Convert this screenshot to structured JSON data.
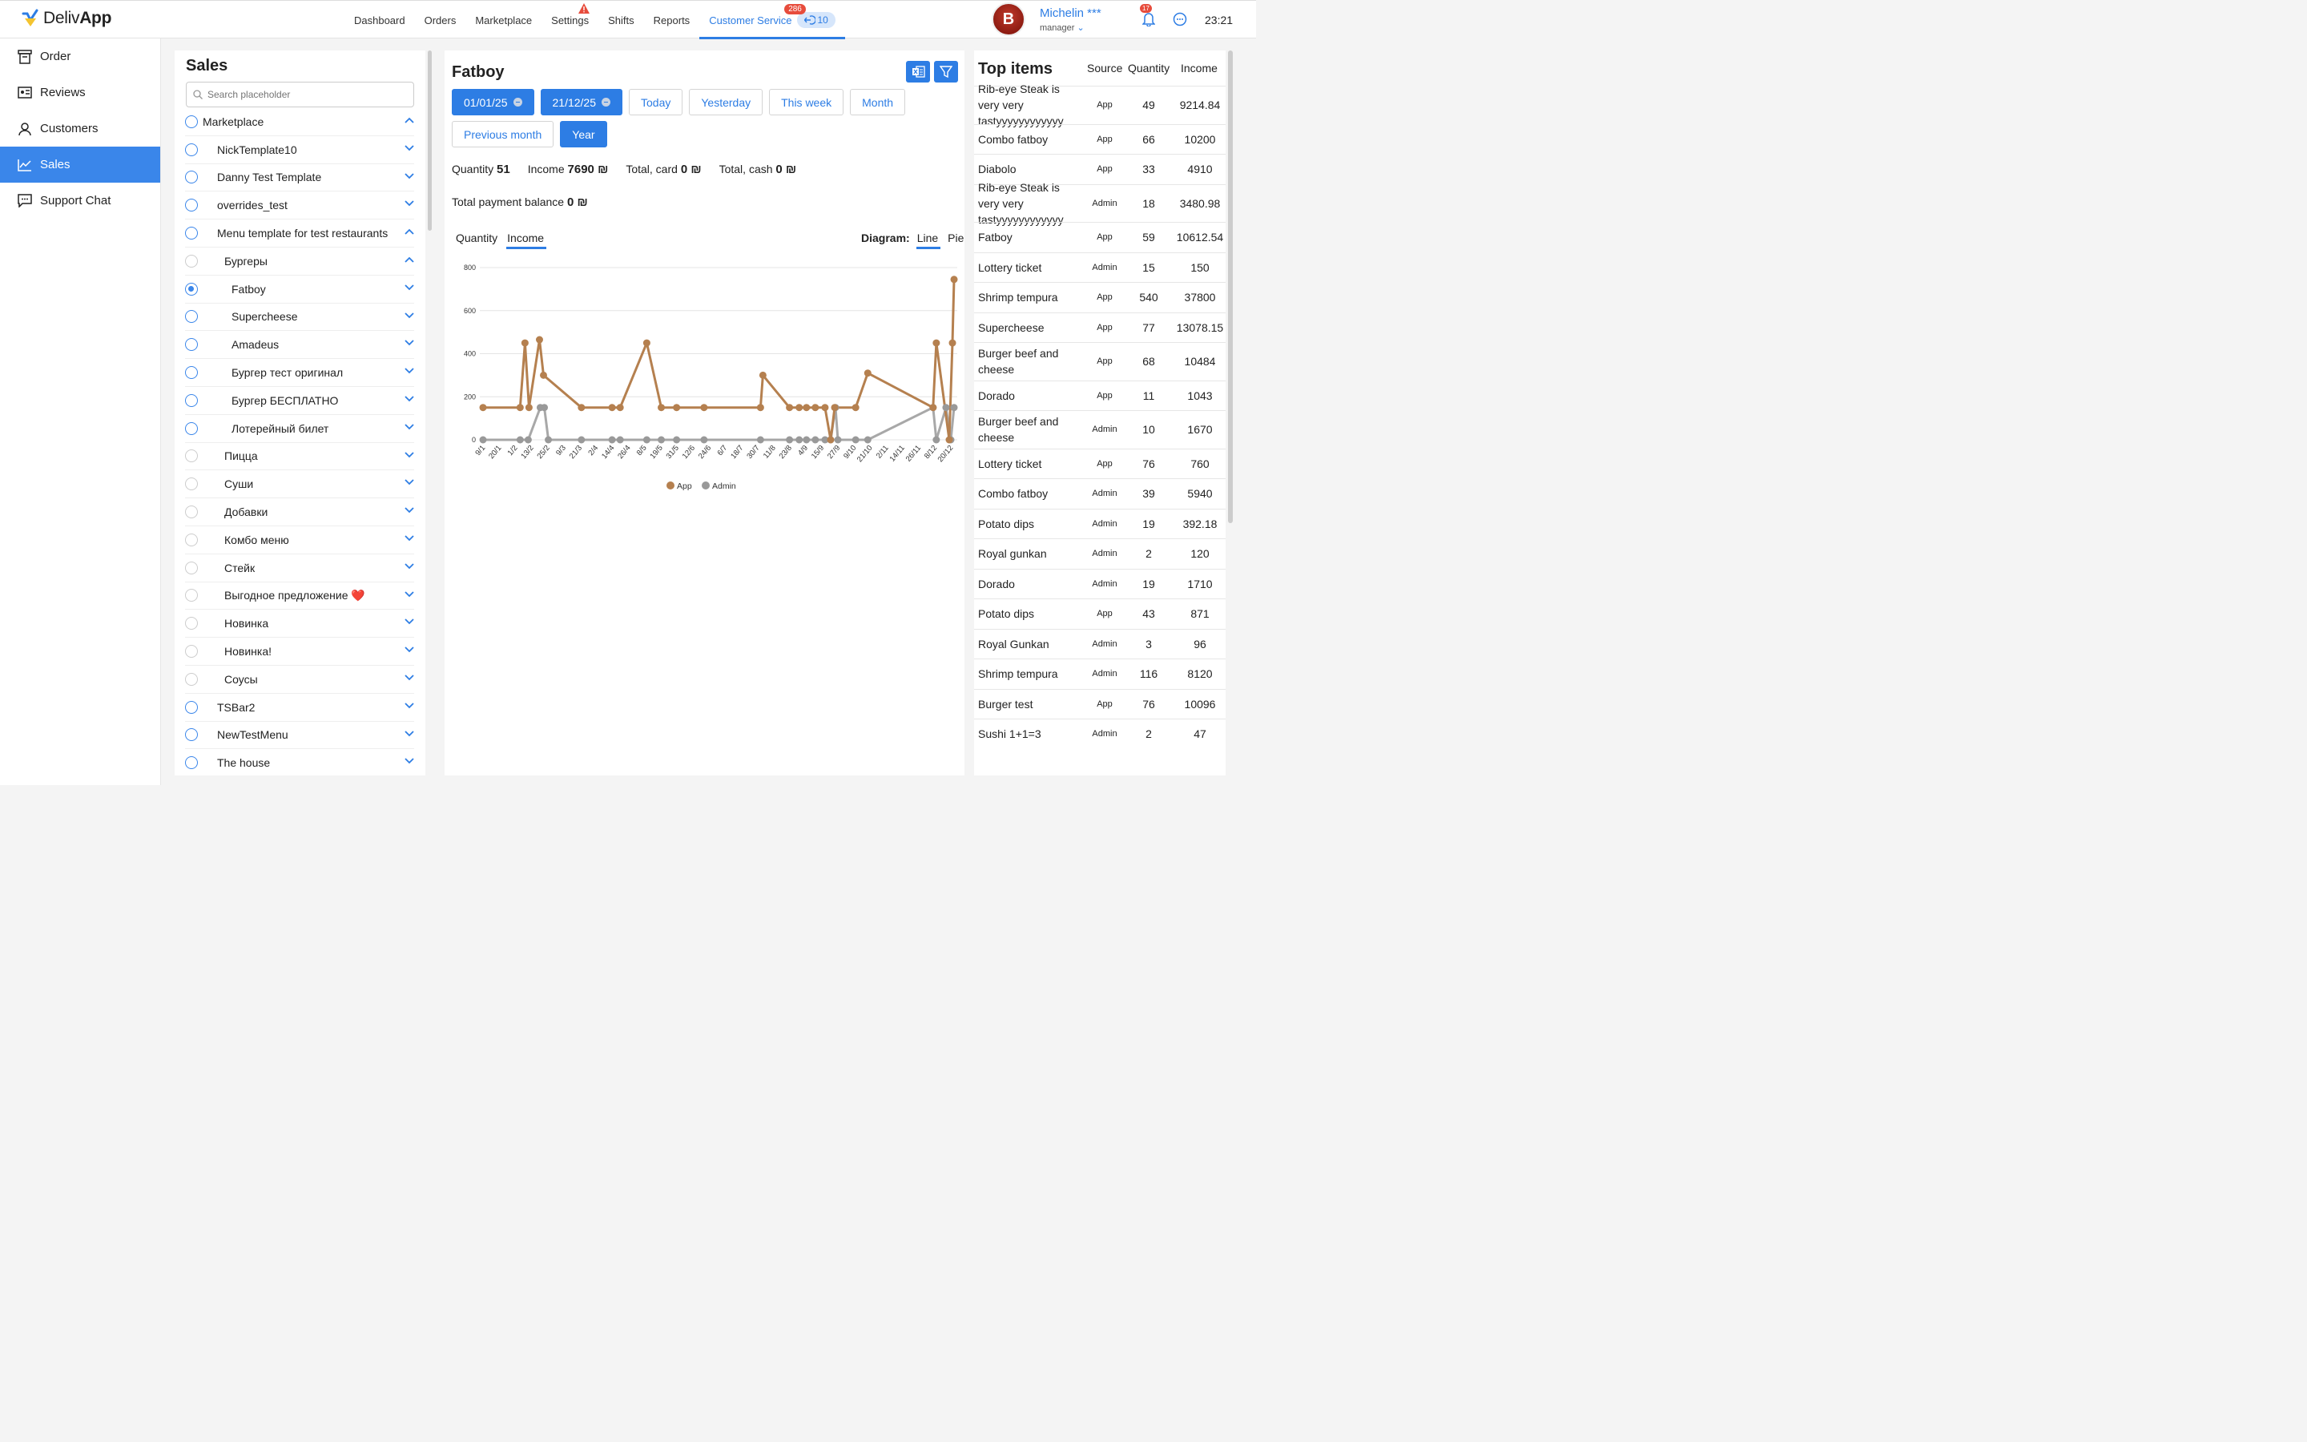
{
  "app": {
    "logo_prefix": "Deliv",
    "logo_bold": "App",
    "time": "23:21"
  },
  "nav": [
    {
      "label": "Dashboard"
    },
    {
      "label": "Orders"
    },
    {
      "label": "Marketplace"
    },
    {
      "label": "Settings"
    },
    {
      "label": "Shifts"
    },
    {
      "label": "Reports"
    },
    {
      "label": "Customer Service"
    }
  ],
  "customer_service": {
    "badge": "286",
    "pill": "10"
  },
  "user": {
    "name": "Michelin ***",
    "role": "manager",
    "avatar_letter": "B",
    "notifications": "17"
  },
  "sidebar": [
    {
      "label": "Order",
      "icon": "order-icon"
    },
    {
      "label": "Reviews",
      "icon": "reviews-icon"
    },
    {
      "label": "Customers",
      "icon": "customers-icon"
    },
    {
      "label": "Sales",
      "icon": "sales-chart-icon"
    },
    {
      "label": "Support Chat",
      "icon": "support-chat-icon"
    }
  ],
  "sales": {
    "title": "Sales",
    "search_placeholder": "Search placeholder",
    "tree": [
      {
        "label": "Marketplace",
        "indent": 0,
        "radio": "blue",
        "chevron": "up"
      },
      {
        "label": "NickTemplate10",
        "indent": 1,
        "radio": "blue",
        "chevron": "down"
      },
      {
        "label": "Danny Test Template",
        "indent": 1,
        "radio": "blue",
        "chevron": "down"
      },
      {
        "label": "overrides_test",
        "indent": 1,
        "radio": "blue",
        "chevron": "down"
      },
      {
        "label": "Menu template for test restaurants",
        "indent": 1,
        "radio": "blue",
        "chevron": "up"
      },
      {
        "label": "Бургеры",
        "indent": 2,
        "radio": "grey",
        "chevron": "up"
      },
      {
        "label": "Fatboy",
        "indent": 3,
        "radio": "checked",
        "chevron": "down"
      },
      {
        "label": "Supercheese",
        "indent": 3,
        "radio": "blue",
        "chevron": "down"
      },
      {
        "label": "Amadeus",
        "indent": 3,
        "radio": "blue",
        "chevron": "down"
      },
      {
        "label": "Бургер тест оригинал",
        "indent": 3,
        "radio": "blue",
        "chevron": "down"
      },
      {
        "label": "Бургер БЕСПЛАТНО",
        "indent": 3,
        "radio": "blue",
        "chevron": "down"
      },
      {
        "label": "Лотерейный билет",
        "indent": 3,
        "radio": "blue",
        "chevron": "down"
      },
      {
        "label": "Пицца",
        "indent": 2,
        "radio": "grey",
        "chevron": "down"
      },
      {
        "label": "Суши",
        "indent": 2,
        "radio": "grey",
        "chevron": "down"
      },
      {
        "label": "Добавки",
        "indent": 2,
        "radio": "grey",
        "chevron": "down"
      },
      {
        "label": "Комбо меню",
        "indent": 2,
        "radio": "grey",
        "chevron": "down"
      },
      {
        "label": "Стейк",
        "indent": 2,
        "radio": "grey",
        "chevron": "down"
      },
      {
        "label": "Выгодное предложение ❤️",
        "indent": 2,
        "radio": "grey",
        "chevron": "down"
      },
      {
        "label": "Новинка",
        "indent": 2,
        "radio": "grey",
        "chevron": "down"
      },
      {
        "label": "Новинка!",
        "indent": 2,
        "radio": "grey",
        "chevron": "down"
      },
      {
        "label": "Соусы",
        "indent": 2,
        "radio": "grey",
        "chevron": "down"
      },
      {
        "label": "TSBar2",
        "indent": 1,
        "radio": "blue",
        "chevron": "down"
      },
      {
        "label": "NewTestMenu",
        "indent": 1,
        "radio": "blue",
        "chevron": "down"
      },
      {
        "label": "The house",
        "indent": 1,
        "radio": "blue",
        "chevron": "down"
      }
    ]
  },
  "main": {
    "title": "Fatboy",
    "date_from": "01/01/25",
    "date_to": "21/12/25",
    "quick_ranges": [
      "Today",
      "Yesterday",
      "This week",
      "Month",
      "Previous month",
      "Year"
    ],
    "active_range": "Year",
    "stats": {
      "quantity_label": "Quantity",
      "quantity_value": "51",
      "income_label": "Income",
      "income_value": "7690 ₪",
      "card_label": "Total, card",
      "card_value": "0 ₪",
      "cash_label": "Total, cash",
      "cash_value": "0 ₪",
      "balance_label": "Total payment balance",
      "balance_value": "0 ₪"
    },
    "tabs": [
      "Quantity",
      "Income"
    ],
    "active_tab": "Income",
    "diagram_label": "Diagram:",
    "diagram_options": [
      "Line",
      "Pie"
    ],
    "active_diagram": "Line"
  },
  "chart_data": {
    "type": "line",
    "ylim": [
      0,
      800
    ],
    "yticks": [
      0,
      200,
      400,
      600,
      800
    ],
    "x_tick_labels": [
      "9/1",
      "20/1",
      "1/2",
      "13/2",
      "25/2",
      "9/3",
      "21/3",
      "2/4",
      "14/4",
      "26/4",
      "8/5",
      "19/5",
      "31/5",
      "12/6",
      "24/6",
      "6/7",
      "18/7",
      "30/7",
      "11/8",
      "23/8",
      "4/9",
      "15/9",
      "27/9",
      "9/10",
      "21/10",
      "2/11",
      "14/11",
      "26/11",
      "8/12",
      "20/12"
    ],
    "series": [
      {
        "name": "App",
        "color": "#b5804f",
        "points": [
          [
            0,
            150
          ],
          [
            2.3,
            150
          ],
          [
            2.6,
            450
          ],
          [
            2.85,
            150
          ],
          [
            3.5,
            465
          ],
          [
            3.75,
            300
          ],
          [
            6.1,
            150
          ],
          [
            8,
            150
          ],
          [
            8.5,
            150
          ],
          [
            10.15,
            450
          ],
          [
            11.05,
            150
          ],
          [
            12,
            150
          ],
          [
            13.7,
            150
          ],
          [
            17.2,
            150
          ],
          [
            17.35,
            300
          ],
          [
            19,
            150
          ],
          [
            19.6,
            150
          ],
          [
            20.05,
            150
          ],
          [
            20.6,
            150
          ],
          [
            21.2,
            150
          ],
          [
            21.55,
            0
          ],
          [
            21.8,
            150
          ],
          [
            23.1,
            150
          ],
          [
            23.85,
            310
          ],
          [
            27.9,
            150
          ],
          [
            28.1,
            450
          ],
          [
            28.9,
            0
          ],
          [
            29.1,
            450
          ],
          [
            29.2,
            745
          ]
        ]
      },
      {
        "name": "Admin",
        "color": "#999999",
        "points": [
          [
            0,
            0
          ],
          [
            2.3,
            0
          ],
          [
            2.8,
            0
          ],
          [
            3.55,
            150
          ],
          [
            3.8,
            150
          ],
          [
            4.05,
            0
          ],
          [
            6.1,
            0
          ],
          [
            8,
            0
          ],
          [
            8.5,
            0
          ],
          [
            10.15,
            0
          ],
          [
            11.05,
            0
          ],
          [
            12,
            0
          ],
          [
            13.7,
            0
          ],
          [
            17.2,
            0
          ],
          [
            19,
            0
          ],
          [
            19.6,
            0
          ],
          [
            20.05,
            0
          ],
          [
            20.6,
            0
          ],
          [
            21.2,
            0
          ],
          [
            21.55,
            0
          ],
          [
            21.85,
            150
          ],
          [
            22,
            0
          ],
          [
            23.1,
            0
          ],
          [
            23.85,
            0
          ],
          [
            27.9,
            150
          ],
          [
            28.1,
            0
          ],
          [
            28.7,
            150
          ],
          [
            29.0,
            0
          ],
          [
            29.2,
            150
          ]
        ]
      }
    ],
    "legend": [
      "App",
      "Admin"
    ],
    "legend_position": "bottom-center"
  },
  "top_items": {
    "title": "Top items",
    "headers": [
      "Source",
      "Quantity",
      "Income"
    ],
    "rows": [
      {
        "name": "Rib-eye Steak is very very tastyyyyyyyyyyyy",
        "source": "App",
        "quantity": "49",
        "income": "9214.84"
      },
      {
        "name": "Combo fatboy",
        "source": "App",
        "quantity": "66",
        "income": "10200"
      },
      {
        "name": "Diabolo",
        "source": "App",
        "quantity": "33",
        "income": "4910"
      },
      {
        "name": "Rib-eye Steak is very very tastyyyyyyyyyyyy",
        "source": "Admin",
        "quantity": "18",
        "income": "3480.98"
      },
      {
        "name": "Fatboy",
        "source": "App",
        "quantity": "59",
        "income": "10612.54"
      },
      {
        "name": "Lottery ticket",
        "source": "Admin",
        "quantity": "15",
        "income": "150"
      },
      {
        "name": "Shrimp tempura",
        "source": "App",
        "quantity": "540",
        "income": "37800"
      },
      {
        "name": "Supercheese",
        "source": "App",
        "quantity": "77",
        "income": "13078.15"
      },
      {
        "name": "Burger beef and cheese",
        "source": "App",
        "quantity": "68",
        "income": "10484"
      },
      {
        "name": "Dorado",
        "source": "App",
        "quantity": "11",
        "income": "1043"
      },
      {
        "name": "Burger beef and cheese",
        "source": "Admin",
        "quantity": "10",
        "income": "1670"
      },
      {
        "name": "Lottery ticket",
        "source": "App",
        "quantity": "76",
        "income": "760"
      },
      {
        "name": "Combo fatboy",
        "source": "Admin",
        "quantity": "39",
        "income": "5940"
      },
      {
        "name": "Potato dips",
        "source": "Admin",
        "quantity": "19",
        "income": "392.18"
      },
      {
        "name": "Royal gunkan",
        "source": "Admin",
        "quantity": "2",
        "income": "120"
      },
      {
        "name": "Dorado",
        "source": "Admin",
        "quantity": "19",
        "income": "1710"
      },
      {
        "name": "Potato dips",
        "source": "App",
        "quantity": "43",
        "income": "871"
      },
      {
        "name": "Royal Gunkan",
        "source": "Admin",
        "quantity": "3",
        "income": "96"
      },
      {
        "name": "Shrimp tempura",
        "source": "Admin",
        "quantity": "116",
        "income": "8120"
      },
      {
        "name": "Burger test",
        "source": "App",
        "quantity": "76",
        "income": "10096"
      },
      {
        "name": "Sushi 1+1=3",
        "source": "Admin",
        "quantity": "2",
        "income": "47"
      }
    ]
  }
}
